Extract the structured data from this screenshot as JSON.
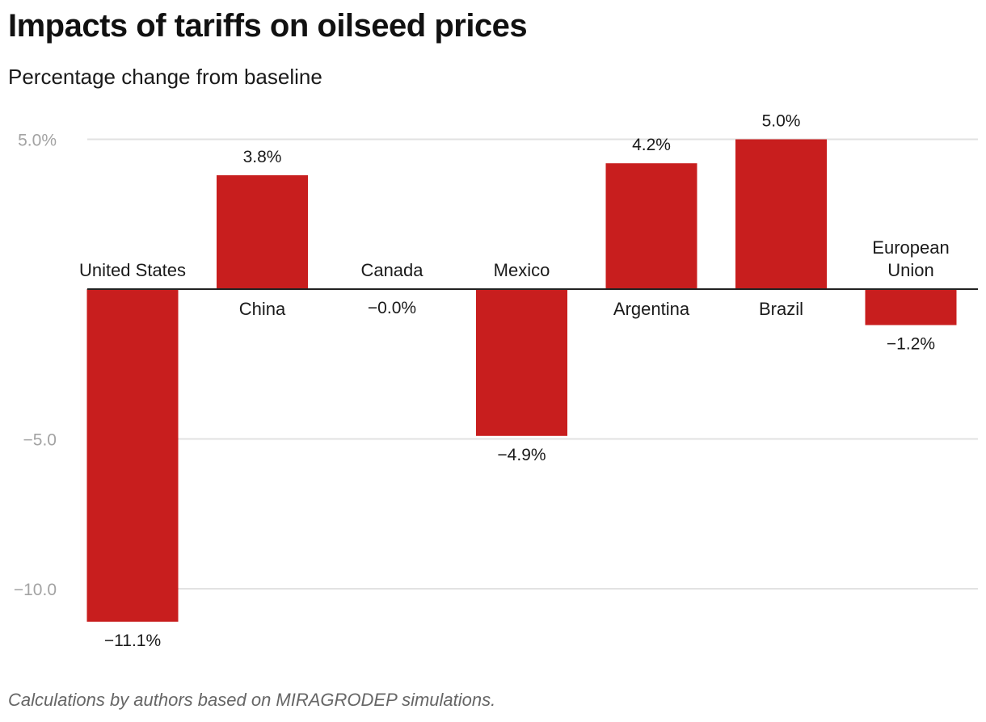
{
  "chart_data": {
    "type": "bar",
    "title": "Impacts of tariffs on oilseed prices",
    "subtitle": "Percentage change from baseline",
    "footer": "Calculations by authors based on MIRAGRODEP simulations.",
    "xlabel": "",
    "ylabel": "",
    "ylim": [
      -11.5,
      5.3
    ],
    "yticks": [
      {
        "value": 5,
        "label": "5.0%"
      },
      {
        "value": -5,
        "label": "−5.0"
      },
      {
        "value": -10,
        "label": "−10.0"
      }
    ],
    "grid": true,
    "legend": "none",
    "bar_color": "#c81e1e",
    "categories": [
      {
        "name": "United States",
        "lines": [
          "United States"
        ]
      },
      {
        "name": "China",
        "lines": [
          "China"
        ]
      },
      {
        "name": "Canada",
        "lines": [
          "Canada"
        ]
      },
      {
        "name": "Mexico",
        "lines": [
          "Mexico"
        ]
      },
      {
        "name": "Argentina",
        "lines": [
          "Argentina"
        ]
      },
      {
        "name": "Brazil",
        "lines": [
          "Brazil"
        ]
      },
      {
        "name": "European Union",
        "lines": [
          "European",
          "Union"
        ]
      }
    ],
    "values": [
      -11.1,
      3.8,
      -0.0,
      -4.9,
      4.2,
      5.0,
      -1.2
    ],
    "value_labels": [
      "−11.1%",
      "3.8%",
      "−0.0%",
      "−4.9%",
      "4.2%",
      "5.0%",
      "−1.2%"
    ]
  }
}
